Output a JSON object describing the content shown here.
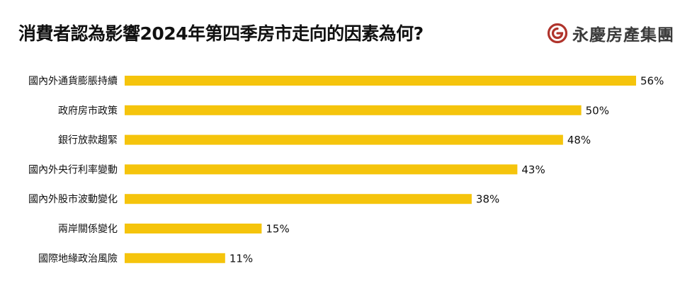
{
  "header": {
    "title": "消費者認為影響2024年第四季房市走向的因素為何?"
  },
  "brand": {
    "name": "永慶房產集團",
    "logo_icon": "yungching-logo-icon",
    "color": "#b0342c"
  },
  "chart_data": {
    "type": "bar",
    "orientation": "horizontal",
    "title": "消費者認為影響2024年第四季房市走向的因素為何?",
    "categories": [
      "國內外通貨膨脹持續",
      "政府房市政策",
      "銀行放款趨緊",
      "國內外央行利率變動",
      "國內外股市波動變化",
      "兩岸關係變化",
      "國際地緣政治風險"
    ],
    "values": [
      56,
      50,
      48,
      43,
      38,
      15,
      11
    ],
    "value_labels": [
      "56%",
      "50%",
      "48%",
      "43%",
      "38%",
      "15%",
      "11%"
    ],
    "unit": "%",
    "xlim": [
      0,
      56
    ],
    "bar_color": "#f5c40c",
    "grid": false,
    "legend": "none"
  }
}
